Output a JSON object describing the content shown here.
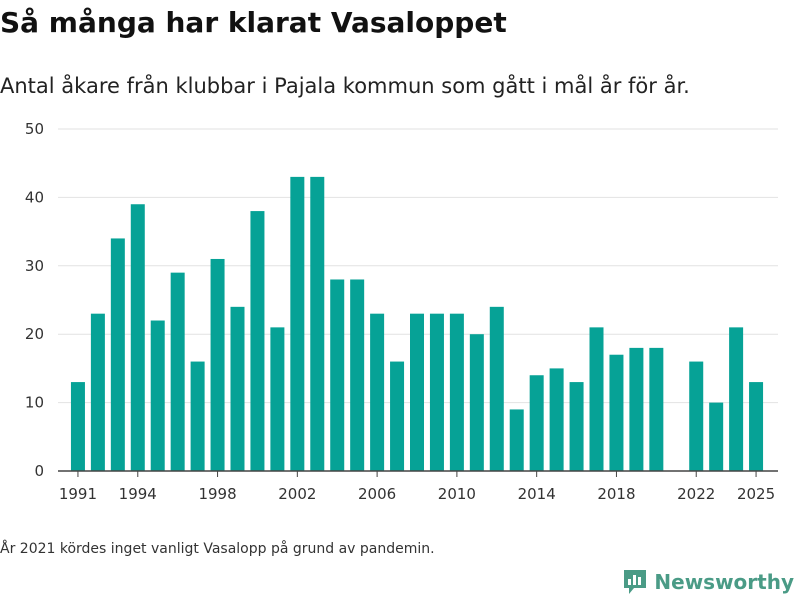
{
  "header": {
    "title": "Så många har klarat Vasaloppet",
    "subtitle": "Antal åkare från klubbar i Pajala kommun som gått i mål år för år."
  },
  "footnote": "År 2021 kördes inget vanligt Vasalopp på grund av pandemin.",
  "brand": {
    "name": "Newsworthy",
    "logo_icon": "newsworthy-logo-icon",
    "color": "#4a9b86"
  },
  "chart_data": {
    "type": "bar",
    "bar_color": "#06a296",
    "grid": true,
    "ylim": [
      0,
      50
    ],
    "yticks": [
      0,
      10,
      20,
      30,
      40,
      50
    ],
    "xticks": [
      1991,
      1994,
      1998,
      2002,
      2006,
      2010,
      2014,
      2018,
      2022,
      2025
    ],
    "x": [
      1991,
      1992,
      1993,
      1994,
      1995,
      1996,
      1997,
      1998,
      1999,
      2000,
      2001,
      2002,
      2003,
      2004,
      2005,
      2006,
      2007,
      2008,
      2009,
      2010,
      2011,
      2012,
      2013,
      2014,
      2015,
      2016,
      2017,
      2018,
      2019,
      2020,
      2022,
      2023,
      2024,
      2025
    ],
    "values": [
      13,
      23,
      34,
      39,
      22,
      29,
      16,
      31,
      24,
      38,
      21,
      43,
      43,
      28,
      28,
      23,
      16,
      23,
      23,
      23,
      20,
      24,
      9,
      14,
      15,
      13,
      21,
      17,
      18,
      18,
      16,
      10,
      21,
      13
    ]
  }
}
